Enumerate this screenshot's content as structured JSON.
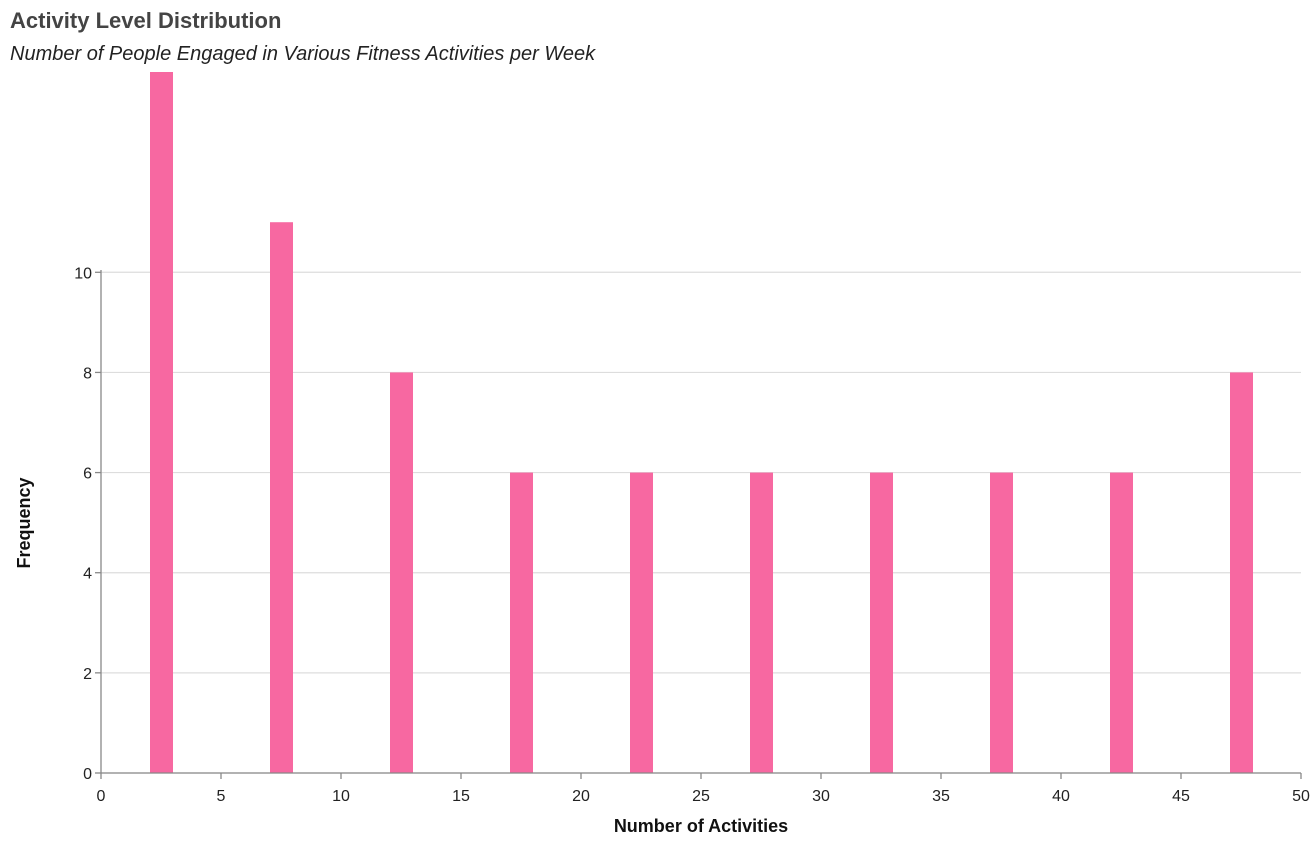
{
  "chart_data": {
    "type": "bar",
    "title": "Activity Level Distribution",
    "subtitle": "Number of People Engaged in Various Fitness Activities per Week",
    "xlabel": "Number of Activities",
    "ylabel": "Frequency",
    "bar_color": "#f768a1",
    "grid": true,
    "xlim": [
      0,
      50
    ],
    "ylim": [
      0,
      14
    ],
    "x_ticks": [
      0,
      5,
      10,
      15,
      20,
      25,
      30,
      35,
      40,
      45,
      50
    ],
    "x_tick_labels": [
      "0",
      "5",
      "10",
      "15",
      "20",
      "25",
      "30",
      "35",
      "40",
      "45",
      "50"
    ],
    "y_ticks": [
      0,
      2,
      4,
      6,
      8,
      10
    ],
    "y_tick_labels": [
      "0",
      "2",
      "4",
      "6",
      "8",
      "10"
    ],
    "bins": [
      {
        "x0": 2,
        "x1": 3,
        "value": 14
      },
      {
        "x0": 7,
        "x1": 8,
        "value": 11
      },
      {
        "x0": 12,
        "x1": 13,
        "value": 8
      },
      {
        "x0": 17,
        "x1": 18,
        "value": 6
      },
      {
        "x0": 22,
        "x1": 23,
        "value": 6
      },
      {
        "x0": 27,
        "x1": 28,
        "value": 6
      },
      {
        "x0": 32,
        "x1": 33,
        "value": 6
      },
      {
        "x0": 37,
        "x1": 38,
        "value": 6
      },
      {
        "x0": 42,
        "x1": 43,
        "value": 6
      },
      {
        "x0": 47,
        "x1": 48,
        "value": 8
      }
    ]
  }
}
